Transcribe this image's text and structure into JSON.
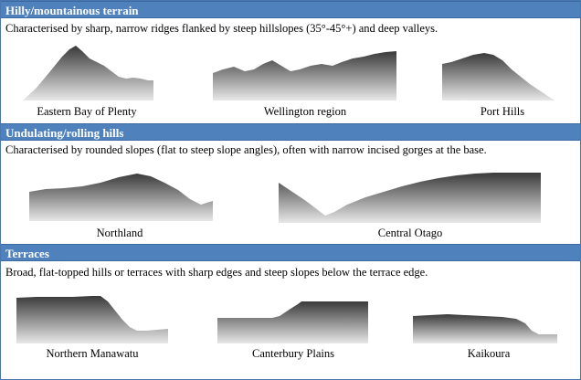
{
  "sections": [
    {
      "title": "Hilly/mountainous terrain",
      "description": "Characterised by sharp, narrow ridges flanked by steep hillslopes (35°-45°+) and deep valleys.",
      "profiles": [
        {
          "label": "Eastern Bay of Plenty"
        },
        {
          "label": "Wellington region"
        },
        {
          "label": "Port Hills"
        }
      ]
    },
    {
      "title": "Undulating/rolling hills",
      "description": "Characterised by rounded slopes (flat to steep slope angles), often with narrow incised gorges at the base.",
      "profiles": [
        {
          "label": "Northland"
        },
        {
          "label": "Central Otago"
        }
      ]
    },
    {
      "title": "Terraces",
      "description": "Broad, flat-topped hills or terraces with sharp edges and steep slopes below the terrace edge.",
      "profiles": [
        {
          "label": "Northern Manawatu"
        },
        {
          "label": "Canterbury Plains"
        },
        {
          "label": "Kaikoura"
        }
      ]
    }
  ],
  "colors": {
    "band": "#4f81bd",
    "band_text": "#ffffff",
    "profile_top": "#3a3a3a",
    "profile_bottom": "#e6e6e6"
  }
}
